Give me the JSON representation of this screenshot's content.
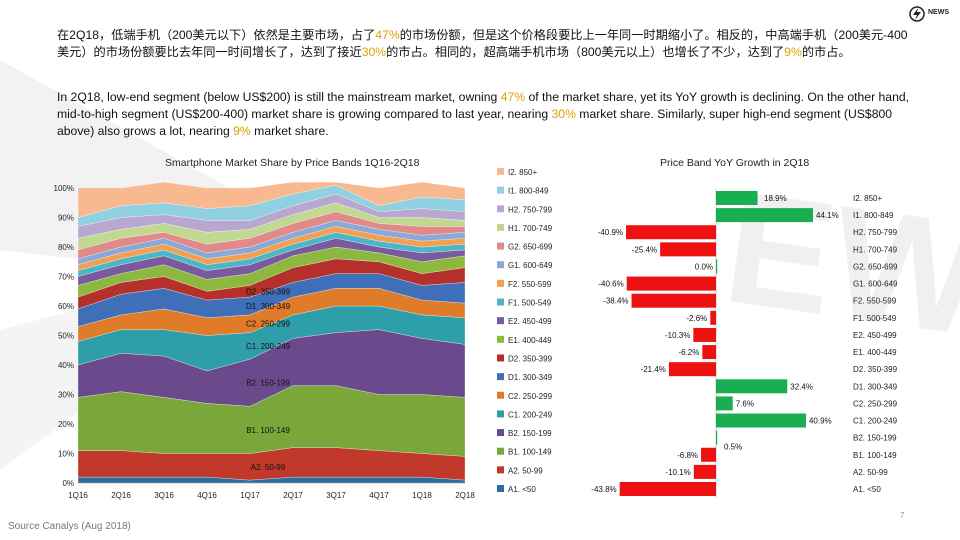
{
  "paragraph_cn": {
    "p1": "在2Q18，低端手机（200美元以下）依然是主要市场，占了",
    "h1": "47%",
    "p2": "的市场份额，但是这个价格段要比上一年同一时期缩小了。相反的，中高端手机（200美元-400美元）的市场份额要比去年同一时间增长了，达到了接近",
    "h2": "30%",
    "p3": "的市占。相同的，超高端手机市场（800美元以上）也增长了不少，达到了",
    "h3": "9%",
    "p4": "的市占。"
  },
  "paragraph_en": {
    "p1": "In 2Q18, low-end segment (below US$200) is still the mainstream market, owning ",
    "h1": "47%",
    "p2": " of the market share, yet its YoY growth is declining. On the other hand, mid-to-high segment (US$200-400) market share is growing compared to last year, nearing ",
    "h2": "30%",
    "p3": " market share. Similarly, super high-end segment (US$800 above) also grows a lot, nearing ",
    "h3": "9%",
    "p4": " market share."
  },
  "logo": {
    "text": "NEWS",
    "icon": "bolt-icon"
  },
  "source": "Source Canalys (Aug 2018)",
  "page_number": "7",
  "colors": {
    "positive": "#1aae52",
    "negative": "#ee1111",
    "highlight": "#e0a000"
  },
  "chart_data": [
    {
      "type": "area",
      "stacked": true,
      "title": "Smartphone Market Share by Price Bands 1Q16-2Q18",
      "x": [
        "1Q16",
        "2Q16",
        "3Q16",
        "4Q16",
        "1Q17",
        "2Q17",
        "3Q17",
        "4Q17",
        "1Q18",
        "2Q18"
      ],
      "yticks": [
        "0%",
        "10%",
        "20%",
        "30%",
        "40%",
        "50%",
        "60%",
        "70%",
        "80%",
        "90%",
        "100%"
      ],
      "ylim": [
        0,
        100
      ],
      "legend_position": "right",
      "series": [
        {
          "name": "A1. <50",
          "color": "#2e6da4",
          "values": [
            2,
            2,
            2,
            2,
            1,
            2,
            2,
            2,
            2,
            1
          ]
        },
        {
          "name": "A2. 50-99",
          "color": "#c0392b",
          "values": [
            9,
            9,
            8,
            8,
            9,
            10,
            10,
            9,
            8,
            8
          ]
        },
        {
          "name": "B1. 100-149",
          "color": "#7aa63a",
          "values": [
            18,
            20,
            19,
            17,
            16,
            21,
            21,
            19,
            20,
            20
          ]
        },
        {
          "name": "B2. 150-199",
          "color": "#6a4a8c",
          "values": [
            11,
            13,
            14,
            11,
            16,
            16,
            18,
            22,
            19,
            18
          ]
        },
        {
          "name": "C1. 200-249",
          "color": "#2e9fa8",
          "values": [
            8,
            8,
            9,
            12,
            9,
            8,
            9,
            8,
            8,
            9
          ]
        },
        {
          "name": "C2. 250-299",
          "color": "#e07b2a",
          "values": [
            5,
            5,
            7,
            6,
            6,
            6,
            6,
            6,
            5,
            5
          ]
        },
        {
          "name": "D1. 300-349",
          "color": "#3f6fb8",
          "values": [
            6,
            7,
            7,
            6,
            6,
            5,
            5,
            5,
            5,
            7
          ]
        },
        {
          "name": "D2. 350-399",
          "color": "#b5302a",
          "values": [
            4,
            4,
            4,
            3,
            4,
            5,
            5,
            4,
            4,
            5
          ]
        },
        {
          "name": "E1. 400-449",
          "color": "#8cb83f",
          "values": [
            4,
            3,
            4,
            4,
            4,
            4,
            4,
            3,
            4,
            4
          ]
        },
        {
          "name": "E2. 450-499",
          "color": "#7a5a9e",
          "values": [
            3,
            3,
            3,
            3,
            3,
            2,
            3,
            2,
            3,
            2
          ]
        },
        {
          "name": "F1. 500-549",
          "color": "#4eb5c7",
          "values": [
            2,
            2,
            2,
            2,
            2,
            2,
            2,
            2,
            2,
            2
          ]
        },
        {
          "name": "F2. 550-599",
          "color": "#f0a050",
          "values": [
            2,
            2,
            2,
            2,
            2,
            2,
            2,
            2,
            2,
            2
          ]
        },
        {
          "name": "G1. 600-649",
          "color": "#8aa8d8",
          "values": [
            2,
            2,
            2,
            2,
            2,
            2,
            2,
            2,
            2,
            2
          ]
        },
        {
          "name": "G2. 650-699",
          "color": "#e08a8a",
          "values": [
            3,
            3,
            2,
            3,
            3,
            3,
            3,
            2,
            3,
            2
          ]
        },
        {
          "name": "H1. 700-749",
          "color": "#c0d890",
          "values": [
            4,
            3,
            3,
            4,
            3,
            3,
            3,
            2,
            3,
            2
          ]
        },
        {
          "name": "H2. 750-799",
          "color": "#b8a8d0",
          "values": [
            4,
            4,
            3,
            4,
            3,
            3,
            3,
            2,
            3,
            3
          ]
        },
        {
          "name": "I1. 800-849",
          "color": "#90d0e0",
          "values": [
            3,
            4,
            4,
            4,
            5,
            4,
            3,
            2,
            4,
            4
          ]
        },
        {
          "name": "I2. 850+",
          "color": "#f8b890",
          "values": [
            10,
            6,
            7,
            7,
            6,
            4,
            1,
            6,
            5,
            4
          ]
        }
      ],
      "data_labels": [
        "D2. 350-399",
        "D1. 300-349",
        "C2. 250-299",
        "C1. 200-249",
        "B2. 150-199",
        "B1. 100-149",
        "A2. 50-99"
      ]
    },
    {
      "type": "bar",
      "orientation": "horizontal",
      "title": "Price Band YoY Growth in 2Q18",
      "categories": [
        "I2. 850+",
        "I1. 800-849",
        "H2. 750-799",
        "H1. 700-749",
        "G2. 650-699",
        "G1. 600-649",
        "F2. 550-599",
        "F1. 500-549",
        "E2. 450-499",
        "E1. 400-449",
        "D2. 350-399",
        "D1. 300-349",
        "C2. 250-299",
        "C1. 200-249",
        "B2. 150-199",
        "B1. 100-149",
        "A2. 50-99",
        "A1. <50"
      ],
      "values": [
        18.9,
        44.1,
        -40.9,
        -25.4,
        0.0,
        -40.6,
        -38.4,
        -2.6,
        -10.3,
        -6.2,
        -21.4,
        32.4,
        7.6,
        40.9,
        0.5,
        -6.8,
        -10.1,
        -43.8
      ],
      "labels": [
        "18.9%",
        "44.1%",
        "-40.9%",
        "-25.4%",
        "0.0%",
        "-40.6%",
        "-38.4%",
        "-2.6%",
        "-10.3%",
        "-6.2%",
        "-21.4%",
        "32.4%",
        "7.6%",
        "40.9%",
        "0.5%",
        "-6.8%",
        "-10.1%",
        "-43.8%"
      ]
    }
  ]
}
